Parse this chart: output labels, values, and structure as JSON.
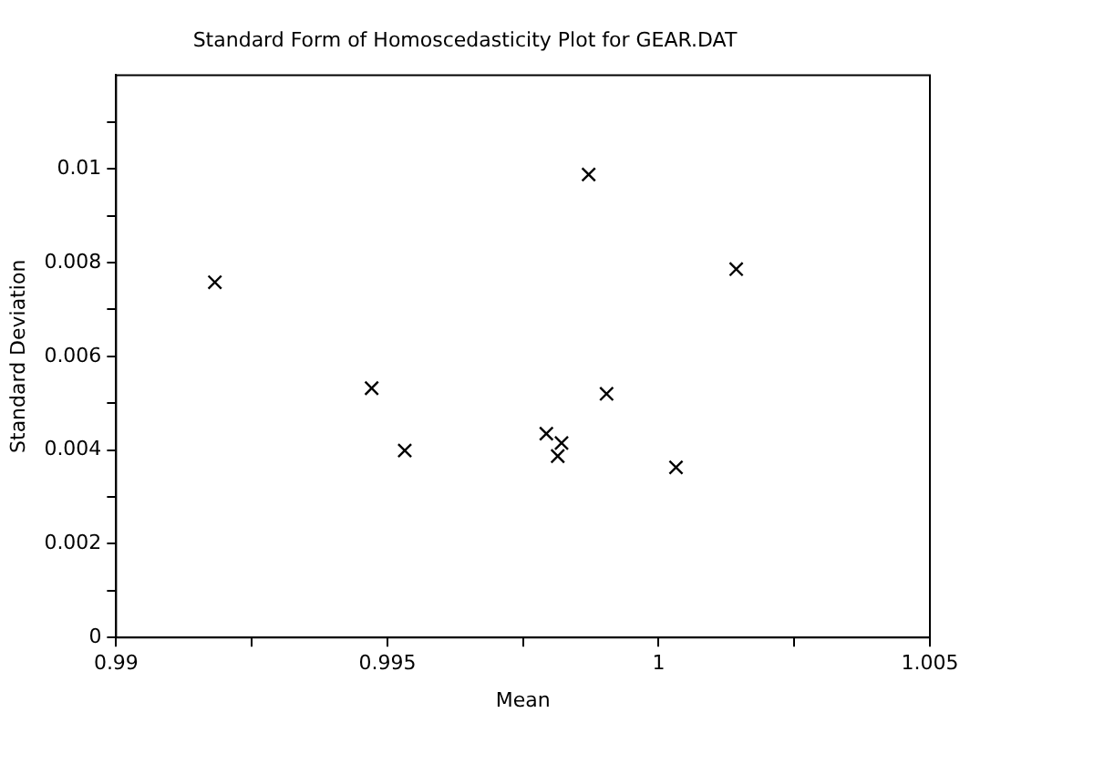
{
  "chart_data": {
    "type": "scatter",
    "title": "Standard Form of Homoscedasticity Plot for GEAR.DAT",
    "xlabel": "Mean",
    "ylabel": "Standard Deviation",
    "x": [
      0.99182,
      0.99471,
      0.99532,
      0.99793,
      0.99814,
      0.99821,
      0.99871,
      0.99904,
      1.00032,
      1.00143
    ],
    "series": [
      {
        "color": "#000000",
        "values": [
          0.00758,
          0.00532,
          0.00399,
          0.00435,
          0.00387,
          0.00415,
          0.00988,
          0.0052,
          0.00363,
          0.00786
        ]
      }
    ],
    "marker": "cross",
    "grid": false,
    "legend": false,
    "xlim": [
      0.99,
      1.005
    ],
    "xticks": [
      0.99,
      {
        "value": 0.9925,
        "label": null
      },
      0.995,
      {
        "value": 0.9975,
        "label": null
      },
      1,
      {
        "value": 1.0025,
        "label": null
      },
      1.005
    ],
    "ylim": [
      0,
      0.012
    ],
    "yticks": [
      0,
      {
        "value": 0.001,
        "label": null
      },
      0.002,
      {
        "value": 0.003,
        "label": null
      },
      0.004,
      {
        "value": 0.005,
        "label": null
      },
      0.006,
      {
        "value": 0.007,
        "label": null
      },
      0.008,
      {
        "value": 0.009,
        "label": null
      },
      0.01,
      {
        "value": 0.011,
        "label": null
      }
    ]
  }
}
